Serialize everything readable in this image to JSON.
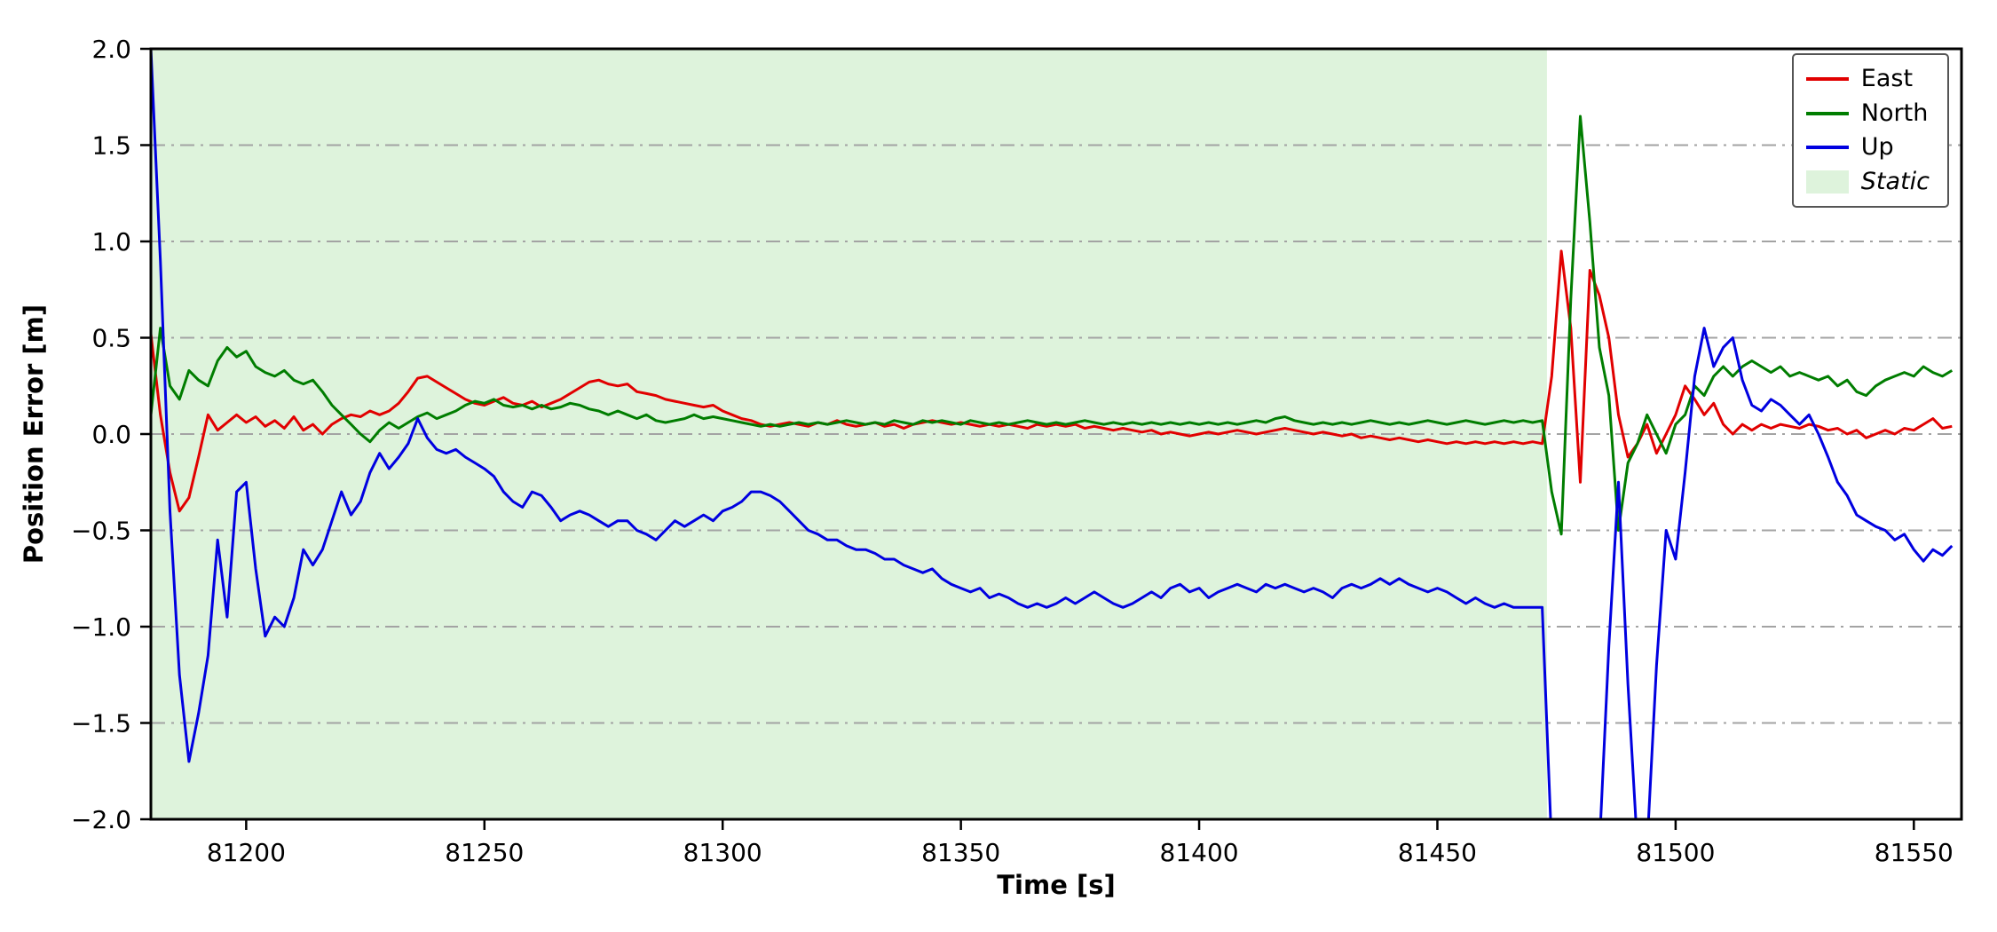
{
  "figure": {
    "background": "#ffffff"
  },
  "chart_data": {
    "type": "line",
    "title": "",
    "xlabel": "Time [s]",
    "ylabel": "Position Error [m]",
    "xlim": [
      81180,
      81560
    ],
    "ylim": [
      -2.0,
      2.0
    ],
    "xticks": [
      81200,
      81250,
      81300,
      81350,
      81400,
      81450,
      81500,
      81550
    ],
    "yticks": [
      -2.0,
      -1.5,
      -1.0,
      -0.5,
      0.0,
      0.5,
      1.0,
      1.5,
      2.0
    ],
    "ygrid": [
      -1.5,
      -1.0,
      -0.5,
      0.0,
      0.5,
      1.0,
      1.5
    ],
    "grid_style": "dash-dot",
    "legend_position": "upper right",
    "x_start": 81180,
    "x_step": 2,
    "static_region": {
      "label": "Static",
      "x0": 81180,
      "x1": 81473,
      "fill": "#def3dc"
    },
    "colors": {
      "grid": "#a3a3a3",
      "axes": "#000000"
    },
    "series": [
      {
        "name": "East",
        "color": "#e10000",
        "values": [
          0.52,
          0.1,
          -0.2,
          -0.4,
          -0.33,
          -0.12,
          0.1,
          0.02,
          0.06,
          0.1,
          0.06,
          0.09,
          0.04,
          0.07,
          0.03,
          0.09,
          0.02,
          0.05,
          0.0,
          0.05,
          0.08,
          0.1,
          0.09,
          0.12,
          0.1,
          0.12,
          0.16,
          0.22,
          0.29,
          0.3,
          0.27,
          0.24,
          0.21,
          0.18,
          0.16,
          0.15,
          0.17,
          0.19,
          0.16,
          0.15,
          0.17,
          0.14,
          0.16,
          0.18,
          0.21,
          0.24,
          0.27,
          0.28,
          0.26,
          0.25,
          0.26,
          0.22,
          0.21,
          0.2,
          0.18,
          0.17,
          0.16,
          0.15,
          0.14,
          0.15,
          0.12,
          0.1,
          0.08,
          0.07,
          0.05,
          0.04,
          0.05,
          0.06,
          0.05,
          0.04,
          0.06,
          0.05,
          0.07,
          0.05,
          0.04,
          0.05,
          0.06,
          0.04,
          0.05,
          0.03,
          0.05,
          0.06,
          0.07,
          0.06,
          0.05,
          0.06,
          0.05,
          0.04,
          0.05,
          0.04,
          0.05,
          0.04,
          0.03,
          0.05,
          0.04,
          0.05,
          0.04,
          0.05,
          0.03,
          0.04,
          0.03,
          0.02,
          0.03,
          0.02,
          0.01,
          0.02,
          0.0,
          0.01,
          0.0,
          -0.01,
          0.0,
          0.01,
          0.0,
          0.01,
          0.02,
          0.01,
          0.0,
          0.01,
          0.02,
          0.03,
          0.02,
          0.01,
          0.0,
          0.01,
          0.0,
          -0.01,
          0.0,
          -0.02,
          -0.01,
          -0.02,
          -0.03,
          -0.02,
          -0.03,
          -0.04,
          -0.03,
          -0.04,
          -0.05,
          -0.04,
          -0.05,
          -0.04,
          -0.05,
          -0.04,
          -0.05,
          -0.04,
          -0.05,
          -0.04,
          -0.05,
          0.3,
          0.95,
          0.55,
          -0.25,
          0.85,
          0.72,
          0.5,
          0.1,
          -0.12,
          -0.05,
          0.05,
          -0.1,
          0.0,
          0.1,
          0.25,
          0.18,
          0.1,
          0.16,
          0.05,
          0.0,
          0.05,
          0.02,
          0.05,
          0.03,
          0.05,
          0.04,
          0.03,
          0.05,
          0.04,
          0.02,
          0.03,
          0.0,
          0.02,
          -0.02,
          0.0,
          0.02,
          0.0,
          0.03,
          0.02,
          0.05,
          0.08,
          0.03,
          0.04
        ]
      },
      {
        "name": "North",
        "color": "#007d00",
        "values": [
          0.1,
          0.55,
          0.25,
          0.18,
          0.33,
          0.28,
          0.25,
          0.38,
          0.45,
          0.4,
          0.43,
          0.35,
          0.32,
          0.3,
          0.33,
          0.28,
          0.26,
          0.28,
          0.22,
          0.15,
          0.1,
          0.05,
          0.0,
          -0.04,
          0.02,
          0.06,
          0.03,
          0.06,
          0.09,
          0.11,
          0.08,
          0.1,
          0.12,
          0.15,
          0.17,
          0.16,
          0.18,
          0.15,
          0.14,
          0.15,
          0.13,
          0.15,
          0.13,
          0.14,
          0.16,
          0.15,
          0.13,
          0.12,
          0.1,
          0.12,
          0.1,
          0.08,
          0.1,
          0.07,
          0.06,
          0.07,
          0.08,
          0.1,
          0.08,
          0.09,
          0.08,
          0.07,
          0.06,
          0.05,
          0.04,
          0.05,
          0.04,
          0.05,
          0.06,
          0.05,
          0.06,
          0.05,
          0.06,
          0.07,
          0.06,
          0.05,
          0.06,
          0.05,
          0.07,
          0.06,
          0.05,
          0.07,
          0.06,
          0.07,
          0.06,
          0.05,
          0.07,
          0.06,
          0.05,
          0.06,
          0.05,
          0.06,
          0.07,
          0.06,
          0.05,
          0.06,
          0.05,
          0.06,
          0.07,
          0.06,
          0.05,
          0.06,
          0.05,
          0.06,
          0.05,
          0.06,
          0.05,
          0.06,
          0.05,
          0.06,
          0.05,
          0.06,
          0.05,
          0.06,
          0.05,
          0.06,
          0.07,
          0.06,
          0.08,
          0.09,
          0.07,
          0.06,
          0.05,
          0.06,
          0.05,
          0.06,
          0.05,
          0.06,
          0.07,
          0.06,
          0.05,
          0.06,
          0.05,
          0.06,
          0.07,
          0.06,
          0.05,
          0.06,
          0.07,
          0.06,
          0.05,
          0.06,
          0.07,
          0.06,
          0.07,
          0.06,
          0.07,
          -0.3,
          -0.52,
          0.7,
          1.65,
          1.1,
          0.45,
          0.2,
          -0.5,
          -0.15,
          -0.05,
          0.1,
          0.0,
          -0.1,
          0.05,
          0.1,
          0.25,
          0.2,
          0.3,
          0.35,
          0.3,
          0.35,
          0.38,
          0.35,
          0.32,
          0.35,
          0.3,
          0.32,
          0.3,
          0.28,
          0.3,
          0.25,
          0.28,
          0.22,
          0.2,
          0.25,
          0.28,
          0.3,
          0.32,
          0.3,
          0.35,
          0.32,
          0.3,
          0.33
        ]
      },
      {
        "name": "Up",
        "color": "#0000e0",
        "values": [
          2.0,
          0.9,
          -0.4,
          -1.25,
          -1.7,
          -1.45,
          -1.15,
          -0.55,
          -0.95,
          -0.3,
          -0.25,
          -0.7,
          -1.05,
          -0.95,
          -1.0,
          -0.85,
          -0.6,
          -0.68,
          -0.6,
          -0.45,
          -0.3,
          -0.42,
          -0.35,
          -0.2,
          -0.1,
          -0.18,
          -0.12,
          -0.05,
          0.08,
          -0.02,
          -0.08,
          -0.1,
          -0.08,
          -0.12,
          -0.15,
          -0.18,
          -0.22,
          -0.3,
          -0.35,
          -0.38,
          -0.3,
          -0.32,
          -0.38,
          -0.45,
          -0.42,
          -0.4,
          -0.42,
          -0.45,
          -0.48,
          -0.45,
          -0.45,
          -0.5,
          -0.52,
          -0.55,
          -0.5,
          -0.45,
          -0.48,
          -0.45,
          -0.42,
          -0.45,
          -0.4,
          -0.38,
          -0.35,
          -0.3,
          -0.3,
          -0.32,
          -0.35,
          -0.4,
          -0.45,
          -0.5,
          -0.52,
          -0.55,
          -0.55,
          -0.58,
          -0.6,
          -0.6,
          -0.62,
          -0.65,
          -0.65,
          -0.68,
          -0.7,
          -0.72,
          -0.7,
          -0.75,
          -0.78,
          -0.8,
          -0.82,
          -0.8,
          -0.85,
          -0.83,
          -0.85,
          -0.88,
          -0.9,
          -0.88,
          -0.9,
          -0.88,
          -0.85,
          -0.88,
          -0.85,
          -0.82,
          -0.85,
          -0.88,
          -0.9,
          -0.88,
          -0.85,
          -0.82,
          -0.85,
          -0.8,
          -0.78,
          -0.82,
          -0.8,
          -0.85,
          -0.82,
          -0.8,
          -0.78,
          -0.8,
          -0.82,
          -0.78,
          -0.8,
          -0.78,
          -0.8,
          -0.82,
          -0.8,
          -0.82,
          -0.85,
          -0.8,
          -0.78,
          -0.8,
          -0.78,
          -0.75,
          -0.78,
          -0.75,
          -0.78,
          -0.8,
          -0.82,
          -0.8,
          -0.82,
          -0.85,
          -0.88,
          -0.85,
          -0.88,
          -0.9,
          -0.88,
          -0.9,
          -0.9,
          -0.9,
          -0.9,
          -2.15,
          -2.15,
          -2.15,
          -2.15,
          -2.15,
          -2.15,
          -1.1,
          -0.25,
          -1.3,
          -2.15,
          -2.15,
          -1.2,
          -0.5,
          -0.65,
          -0.2,
          0.3,
          0.55,
          0.35,
          0.45,
          0.5,
          0.28,
          0.15,
          0.12,
          0.18,
          0.15,
          0.1,
          0.05,
          0.1,
          0.0,
          -0.12,
          -0.25,
          -0.32,
          -0.42,
          -0.45,
          -0.48,
          -0.5,
          -0.55,
          -0.52,
          -0.6,
          -0.66,
          -0.6,
          -0.63,
          -0.58
        ]
      }
    ]
  }
}
